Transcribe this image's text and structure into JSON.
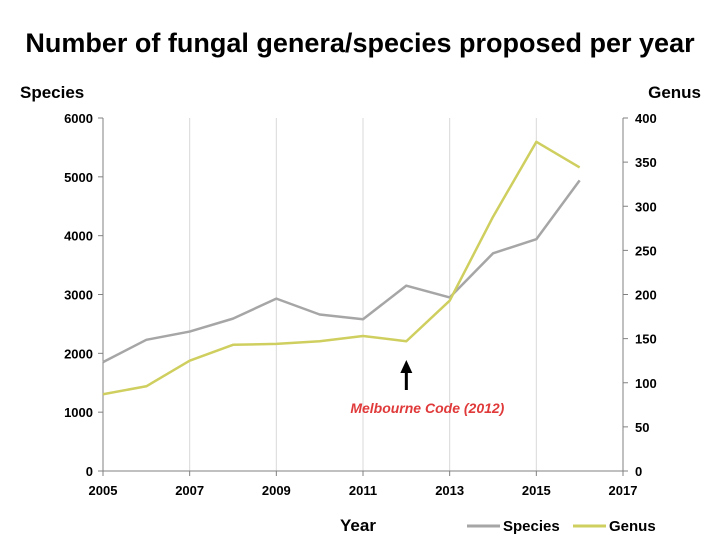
{
  "chart_data": {
    "type": "line",
    "title": "Number of fungal genera/species proposed per year",
    "xlabel": "Year",
    "ylabel_left": "Species",
    "ylabel_right": "Genus",
    "x": [
      2005,
      2006,
      2007,
      2008,
      2009,
      2010,
      2011,
      2012,
      2013,
      2014,
      2015,
      2016
    ],
    "xlim": [
      2005,
      2017
    ],
    "xticks": [
      2005,
      2007,
      2009,
      2011,
      2013,
      2015,
      2017
    ],
    "ylim_left": [
      0,
      6000
    ],
    "yticks_left": [
      0,
      1000,
      2000,
      3000,
      4000,
      5000,
      6000
    ],
    "ylim_right": [
      0,
      400
    ],
    "yticks_right": [
      0,
      50,
      100,
      150,
      200,
      250,
      300,
      350,
      400
    ],
    "grid": "vertical",
    "legend": "bottom-right",
    "series": [
      {
        "name": "Species",
        "axis": "left",
        "color": "#a6a6a6",
        "values": [
          1850,
          2230,
          2370,
          2590,
          2930,
          2660,
          2580,
          3150,
          2950,
          3700,
          3940,
          4940
        ]
      },
      {
        "name": "Genus",
        "axis": "right",
        "color": "#cfcf60",
        "values": [
          87,
          96,
          125,
          143,
          144,
          147,
          153,
          147,
          193,
          288,
          373,
          344
        ]
      }
    ],
    "annotation": {
      "text": "Melbourne Code (2012)",
      "x": 2012,
      "color": "#e03a3a"
    }
  }
}
